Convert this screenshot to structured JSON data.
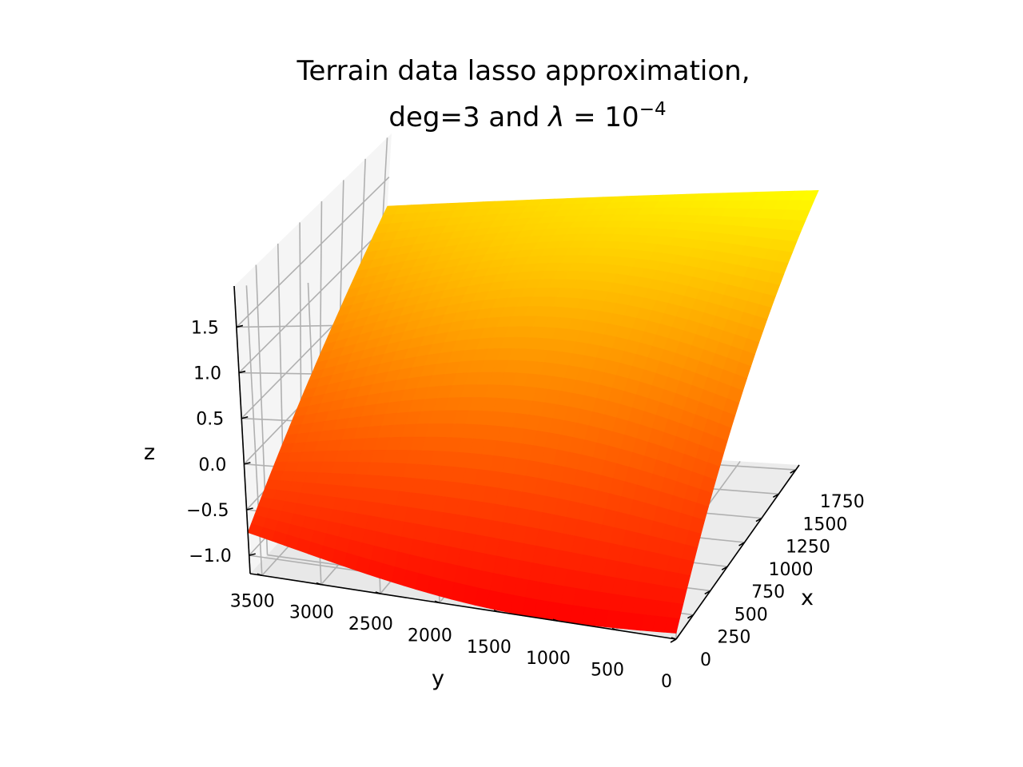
{
  "chart_data": {
    "type": "surface",
    "title_line1": "Terrain data lasso approximation,",
    "title_line2_prefix": "deg=3 and ",
    "title_lambda": "λ",
    "title_eq": " = 10",
    "title_exp": "−4",
    "xlabel": "x",
    "ylabel": "y",
    "zlabel": "z",
    "x_ticks": [
      "0",
      "250",
      "500",
      "750",
      "1000",
      "1250",
      "1500",
      "1750"
    ],
    "y_ticks": [
      "0",
      "500",
      "1000",
      "1500",
      "2000",
      "2500",
      "3000",
      "3500"
    ],
    "z_ticks": [
      "−1.0",
      "−0.5",
      "0.0",
      "0.5",
      "1.0",
      "1.5"
    ],
    "xlim": [
      0,
      1800
    ],
    "ylim": [
      0,
      3600
    ],
    "zlim": [
      -1.2,
      1.95
    ],
    "colormap": "autumn",
    "colors": {
      "low": "#ff0000",
      "high": "#ffff00",
      "pane": "#f2f2f2",
      "grid": "#b0b0b0"
    },
    "corner_z": {
      "x0_y0": -1.15,
      "x0_y3600": -0.75,
      "x1800_y0": 1.85,
      "x1800_y3600": 1.2
    },
    "grid": true
  }
}
